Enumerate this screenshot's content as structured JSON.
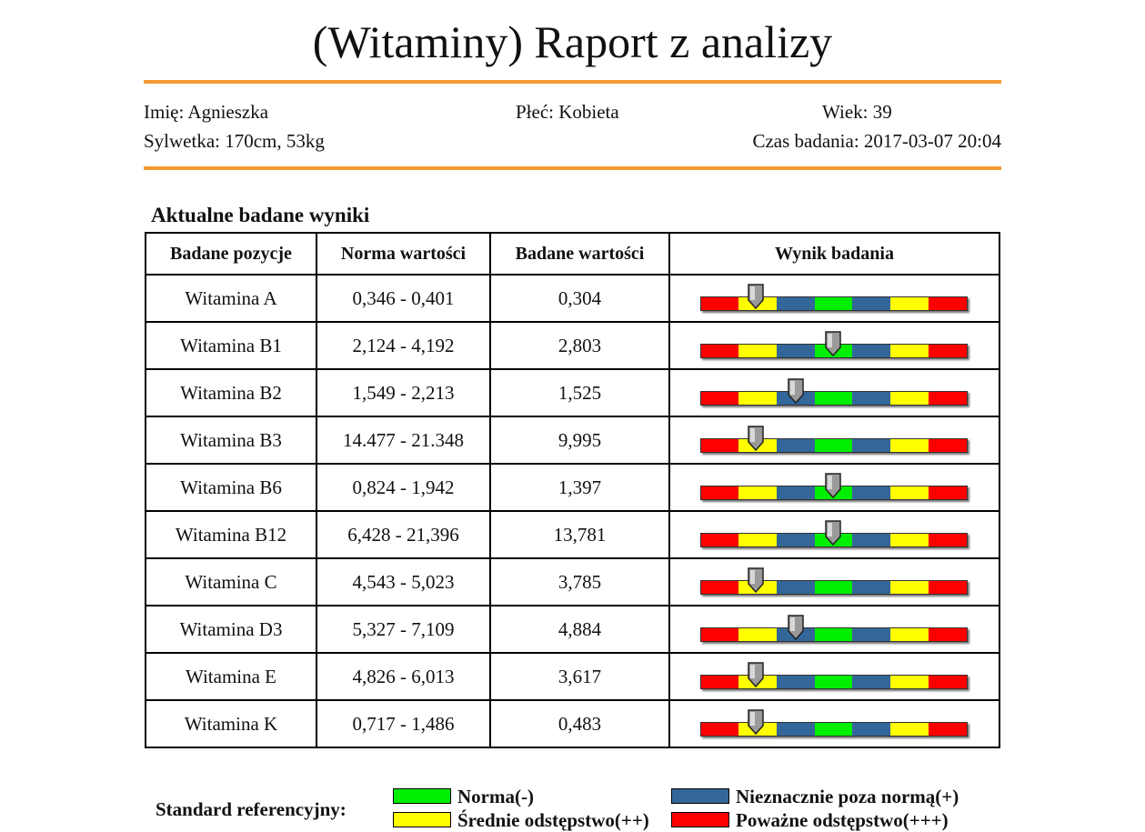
{
  "title": "(Witaminy) Raport z analizy",
  "patient": {
    "name": "Imię: Agnieszka",
    "sex": "Płeć: Kobieta",
    "age": "Wiek: 39",
    "figure": "Sylwetka: 170cm, 53kg",
    "exam_time": "Czas badania: 2017-03-07 20:04"
  },
  "section_title": "Aktualne badane wyniki",
  "table": {
    "headers": [
      "Badane pozycje",
      "Norma wartości",
      "Badane wartości",
      "Wynik badania"
    ],
    "rows": [
      {
        "item": "Witamina A",
        "norm": "0,346 - 0,401",
        "value": "0,304",
        "level": 0.21
      },
      {
        "item": "Witamina B1",
        "norm": "2,124 - 4,192",
        "value": "2,803",
        "level": 0.5
      },
      {
        "item": "Witamina B2",
        "norm": "1,549 - 2,213",
        "value": "1,525",
        "level": 0.36
      },
      {
        "item": "Witamina B3",
        "norm": "14.477 - 21.348",
        "value": "9,995",
        "level": 0.21
      },
      {
        "item": "Witamina B6",
        "norm": "0,824 - 1,942",
        "value": "1,397",
        "level": 0.5
      },
      {
        "item": "Witamina B12",
        "norm": "6,428 - 21,396",
        "value": "13,781",
        "level": 0.5
      },
      {
        "item": "Witamina C",
        "norm": "4,543 - 5,023",
        "value": "3,785",
        "level": 0.21
      },
      {
        "item": "Witamina D3",
        "norm": "5,327 - 7,109",
        "value": "4,884",
        "level": 0.36
      },
      {
        "item": "Witamina E",
        "norm": "4,826 - 6,013",
        "value": "3,617",
        "level": 0.21
      },
      {
        "item": "Witamina K",
        "norm": "0,717 - 1,486",
        "value": "0,483",
        "level": 0.21
      }
    ]
  },
  "gauge_colors": [
    "#ff0000",
    "#ffff00",
    "#336699",
    "#00ee00",
    "#336699",
    "#ffff00",
    "#ff0000"
  ],
  "legend": {
    "label": "Standard referencyjny:",
    "items": [
      {
        "text": "Norma(-)",
        "color": "#00ee00"
      },
      {
        "text": "Nieznacznie poza normą(+)",
        "color": "#336699"
      },
      {
        "text": "Średnie odstępstwo(++)",
        "color": "#ffff00"
      },
      {
        "text": "Poważne odstępstwo(+++)",
        "color": "#ff0000"
      }
    ]
  }
}
